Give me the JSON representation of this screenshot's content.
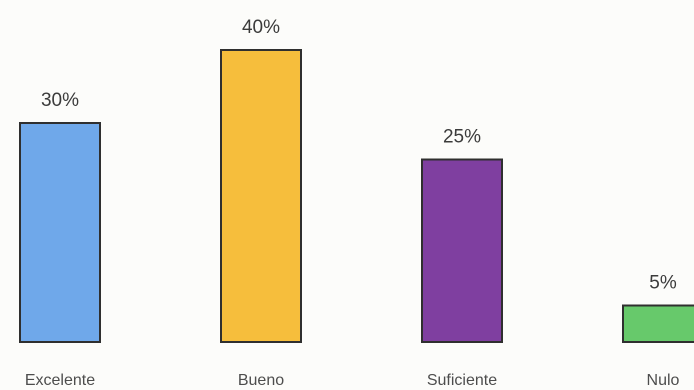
{
  "chart_data": {
    "type": "bar",
    "title": "",
    "xlabel": "",
    "ylabel": "",
    "categories": [
      "Excelente",
      "Bueno",
      "Suficiente",
      "Nulo"
    ],
    "values": [
      30,
      40,
      25,
      5
    ],
    "data_labels": [
      "30%",
      "40%",
      "25%",
      "5%"
    ],
    "colors": [
      "#6fa8ea",
      "#f6be3c",
      "#7f3fa0",
      "#67c96b"
    ],
    "ylim": [
      0,
      40
    ],
    "grid": false,
    "legend": "none"
  }
}
